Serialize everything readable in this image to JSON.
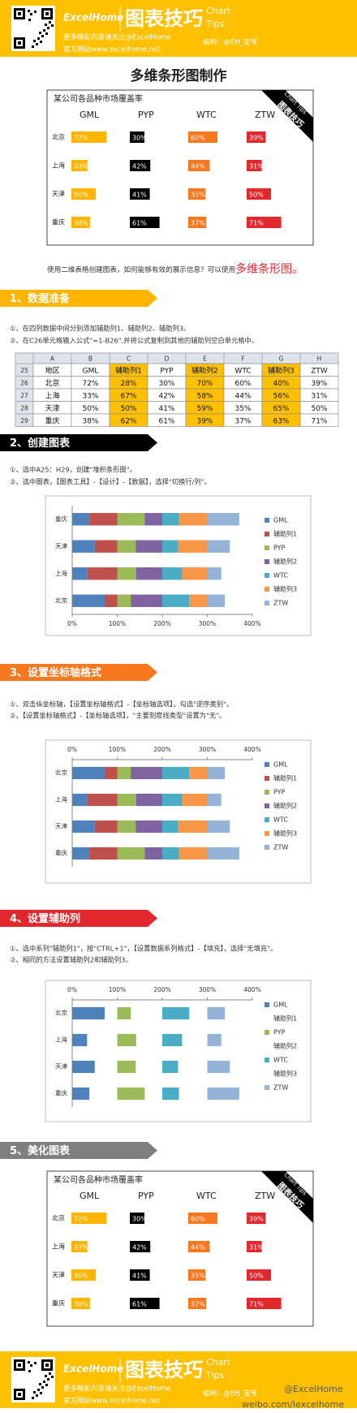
{
  "header": {
    "brand": "ExcelHome",
    "title": "图表技巧",
    "tagline": [
      "Chart",
      "Tips"
    ],
    "follow": "更多精彩内容请关注@ExcelHome",
    "site": "官方网站www.excelhome.net",
    "author": "编制：@EH_宝爷"
  },
  "title": "多维条形图制作",
  "intro": {
    "text": "使用二维表格创建图表，如何能够有效的展示信息？可以使用",
    "highlight": "多维条形图。"
  },
  "sections": [
    {
      "heading": "1、数据准备",
      "color": "#ffb400",
      "steps": [
        "①、在四列数据中间分别添加辅助列1、辅助列2、辅助列3。",
        "②、在C26单元格输入公式\"=1-B26\",并将公式复制到其他的辅助列空白单元格中。"
      ]
    },
    {
      "heading": "2、创建图表",
      "color": "#000000",
      "steps": [
        "①、选中A25：H29，创建\"堆积条形图\"。",
        "②、选中图表，【图表工具】-【设计】-【数据】，选择\"切换行/列\"。"
      ]
    },
    {
      "heading": "3、设置坐标轴格式",
      "color": "#f7781e",
      "steps": [
        "①、双击纵坐标轴，【设置坐标轴格式】-【坐标轴选项】，勾选\"逆序类别\"。",
        "②、【设置坐标轴格式】-【坐标轴选项】，\"主要刻度线类型\"设置为\"无\"。"
      ]
    },
    {
      "heading": "4、设置辅助列",
      "color": "#e2272d",
      "steps": [
        "①、选中系列\"辅助列1\"，按\"CTRL+1\"，【设置数据系列格式】-【填充】，选择\"无填充\"。",
        "②、相同的方法设置辅助列2和辅助列3。"
      ]
    },
    {
      "heading": "5、美化图表",
      "color": "#7f7f7f",
      "steps": []
    }
  ],
  "table": {
    "columns": [
      "A",
      "B",
      "C",
      "D",
      "E",
      "F",
      "G",
      "H"
    ],
    "highlight_columns": [
      2,
      4,
      6
    ],
    "rows": [
      {
        "number": "25",
        "cells": [
          "地区",
          "GML",
          "辅助列1",
          "PYP",
          "辅助列2",
          "WTC",
          "辅助列3",
          "ZTW"
        ]
      },
      {
        "number": "26",
        "cells": [
          "北京",
          "72%",
          "28%",
          "30%",
          "70%",
          "60%",
          "40%",
          "39%"
        ]
      },
      {
        "number": "27",
        "cells": [
          "上海",
          "33%",
          "67%",
          "42%",
          "58%",
          "44%",
          "56%",
          "31%"
        ]
      },
      {
        "number": "28",
        "cells": [
          "天津",
          "50%",
          "50%",
          "41%",
          "59%",
          "35%",
          "65%",
          "50%"
        ]
      },
      {
        "number": "29",
        "cells": [
          "重庆",
          "38%",
          "62%",
          "61%",
          "39%",
          "37%",
          "63%",
          "71%"
        ]
      }
    ]
  },
  "chart_data": [
    {
      "type": "multibar",
      "title": "某公司各品种市场覆盖率",
      "ribbon": [
        "Chart Tips",
        "图表技巧"
      ],
      "categories": [
        "北京",
        "上海",
        "天津",
        "重庆"
      ],
      "xlim": [
        0,
        100
      ],
      "series": [
        {
          "name": "GML",
          "color": "#ffb400",
          "values": [
            72,
            33,
            50,
            38
          ],
          "value_labels": [
            "72%",
            "33%",
            "50%",
            "38%"
          ]
        },
        {
          "name": "PYP",
          "color": "#000000",
          "values": [
            30,
            42,
            41,
            61
          ],
          "value_labels": [
            "30%",
            "42%",
            "41%",
            "61%"
          ]
        },
        {
          "name": "WTC",
          "color": "#f7781e",
          "values": [
            60,
            44,
            35,
            37
          ],
          "value_labels": [
            "60%",
            "44%",
            "35%",
            "37%"
          ]
        },
        {
          "name": "ZTW",
          "color": "#e2272d",
          "values": [
            39,
            31,
            50,
            71
          ],
          "value_labels": [
            "39%",
            "31%",
            "50%",
            "71%"
          ]
        }
      ]
    },
    {
      "type": "stacked_bar",
      "categories": [
        "北京",
        "上海",
        "天津",
        "重庆"
      ],
      "reverse_categories": false,
      "x_axis": "bottom",
      "legend": "right",
      "xlim": [
        0,
        400
      ],
      "xticks": [
        {
          "value": 0,
          "label": "0%"
        },
        {
          "value": 100,
          "label": "100%"
        },
        {
          "value": 200,
          "label": "200%"
        },
        {
          "value": 300,
          "label": "300%"
        },
        {
          "value": 400,
          "label": "400%"
        }
      ],
      "series": [
        {
          "name": "GML",
          "color": "#4f81bd",
          "values": [
            72,
            33,
            50,
            38
          ]
        },
        {
          "name": "辅助列1",
          "color": "#c0504d",
          "values": [
            28,
            67,
            50,
            62
          ]
        },
        {
          "name": "PYP",
          "color": "#9bbb59",
          "values": [
            30,
            42,
            41,
            61
          ]
        },
        {
          "name": "辅助列2",
          "color": "#8064a2",
          "values": [
            70,
            58,
            59,
            39
          ]
        },
        {
          "name": "WTC",
          "color": "#4bacc6",
          "values": [
            60,
            44,
            35,
            37
          ]
        },
        {
          "name": "辅助列3",
          "color": "#f79646",
          "values": [
            40,
            56,
            65,
            63
          ]
        },
        {
          "name": "ZTW",
          "color": "#95b3d7",
          "values": [
            39,
            31,
            50,
            71
          ]
        }
      ]
    },
    {
      "type": "stacked_bar",
      "categories": [
        "北京",
        "上海",
        "天津",
        "重庆"
      ],
      "reverse_categories": true,
      "x_axis": "top",
      "legend": "right",
      "xlim": [
        0,
        400
      ],
      "xticks": [
        {
          "value": 0,
          "label": "0%"
        },
        {
          "value": 100,
          "label": "100%"
        },
        {
          "value": 200,
          "label": "200%"
        },
        {
          "value": 300,
          "label": "300%"
        },
        {
          "value": 400,
          "label": "400%"
        }
      ],
      "series": [
        {
          "name": "GML",
          "color": "#4f81bd",
          "values": [
            72,
            33,
            50,
            38
          ]
        },
        {
          "name": "辅助列1",
          "color": "#c0504d",
          "values": [
            28,
            67,
            50,
            62
          ]
        },
        {
          "name": "PYP",
          "color": "#9bbb59",
          "values": [
            30,
            42,
            41,
            61
          ]
        },
        {
          "name": "辅助列2",
          "color": "#8064a2",
          "values": [
            70,
            58,
            59,
            39
          ]
        },
        {
          "name": "WTC",
          "color": "#4bacc6",
          "values": [
            60,
            44,
            35,
            37
          ]
        },
        {
          "name": "辅助列3",
          "color": "#f79646",
          "values": [
            40,
            56,
            65,
            63
          ]
        },
        {
          "name": "ZTW",
          "color": "#95b3d7",
          "values": [
            39,
            31,
            50,
            71
          ]
        }
      ]
    },
    {
      "type": "stacked_bar",
      "categories": [
        "北京",
        "上海",
        "天津",
        "重庆"
      ],
      "reverse_categories": true,
      "x_axis": "top",
      "legend": "right",
      "xlim": [
        0,
        400
      ],
      "xticks": [
        {
          "value": 0,
          "label": "0%"
        },
        {
          "value": 100,
          "label": "100%"
        },
        {
          "value": 200,
          "label": "200%"
        },
        {
          "value": 300,
          "label": "300%"
        },
        {
          "value": 400,
          "label": "400%"
        }
      ],
      "series": [
        {
          "name": "GML",
          "color": "#4f81bd",
          "values": [
            72,
            33,
            50,
            38
          ]
        },
        {
          "name": "辅助列1",
          "color": "none",
          "values": [
            28,
            67,
            50,
            62
          ]
        },
        {
          "name": "PYP",
          "color": "#9bbb59",
          "values": [
            30,
            42,
            41,
            61
          ]
        },
        {
          "name": "辅助列2",
          "color": "none",
          "values": [
            70,
            58,
            59,
            39
          ]
        },
        {
          "name": "WTC",
          "color": "#4bacc6",
          "values": [
            60,
            44,
            35,
            37
          ]
        },
        {
          "name": "辅助列3",
          "color": "none",
          "values": [
            40,
            56,
            65,
            63
          ]
        },
        {
          "name": "ZTW",
          "color": "#95b3d7",
          "values": [
            39,
            31,
            50,
            71
          ]
        }
      ]
    },
    {
      "type": "multibar",
      "title": "某公司各品种市场覆盖率",
      "ribbon": [
        "Chart Tips",
        "图表技巧"
      ],
      "categories": [
        "北京",
        "上海",
        "天津",
        "重庆"
      ],
      "xlim": [
        0,
        100
      ],
      "series": [
        {
          "name": "GML",
          "color": "#ffb400",
          "values": [
            72,
            33,
            50,
            38
          ],
          "value_labels": [
            "72%",
            "33%",
            "50%",
            "38%"
          ]
        },
        {
          "name": "PYP",
          "color": "#000000",
          "values": [
            30,
            42,
            41,
            61
          ],
          "value_labels": [
            "30%",
            "42%",
            "41%",
            "61%"
          ]
        },
        {
          "name": "WTC",
          "color": "#f7781e",
          "values": [
            60,
            44,
            35,
            37
          ],
          "value_labels": [
            "60%",
            "44%",
            "35%",
            "37%"
          ]
        },
        {
          "name": "ZTW",
          "color": "#e2272d",
          "values": [
            39,
            31,
            50,
            71
          ],
          "value_labels": [
            "39%",
            "31%",
            "50%",
            "71%"
          ]
        }
      ]
    }
  ],
  "footer": {
    "watermark": "@ExcelHome",
    "weibo": "weibo.com/iexcelhome"
  }
}
